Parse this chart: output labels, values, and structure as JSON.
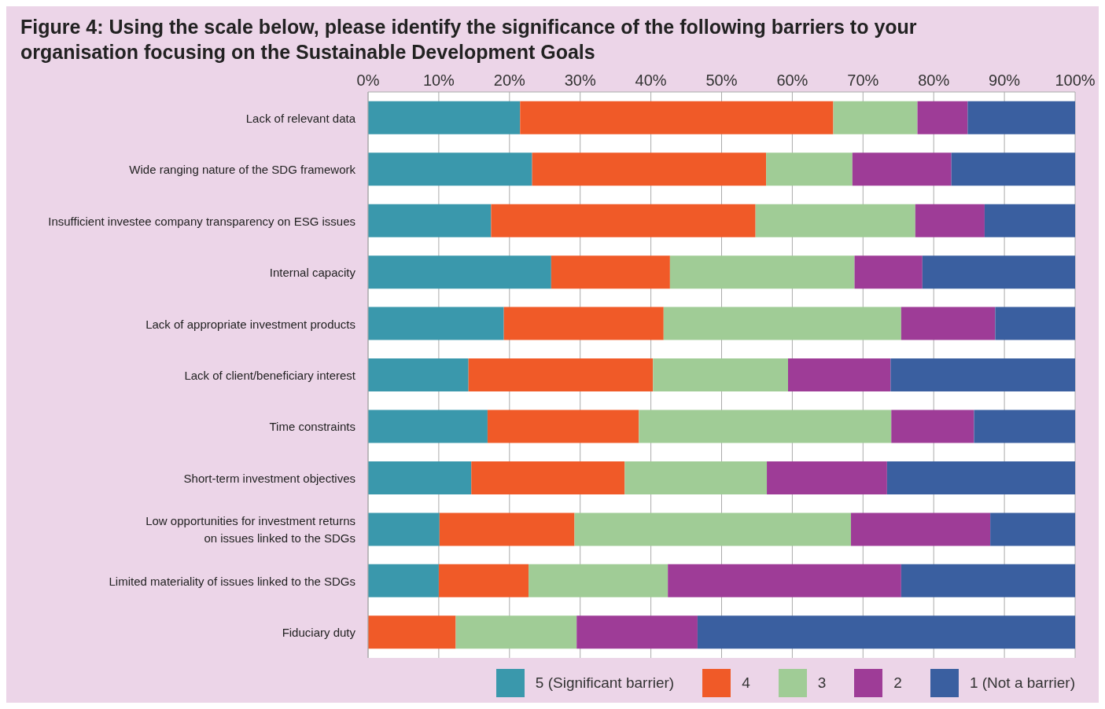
{
  "chart_data": {
    "type": "bar",
    "orientation": "horizontal",
    "stacked": true,
    "title": "Figure 4: Using the scale below, please identify the significance of the following barriers to your organisation focusing on the Sustainable Development Goals",
    "categories": [
      "Lack of relevant data",
      "Wide ranging nature of the SDG framework",
      "Insufficient investee company transparency on ESG issues",
      "Internal capacity",
      "Lack of appropriate investment products",
      "Lack of client/beneficiary interest",
      "Time constraints",
      "Short-term investment objectives",
      "Low opportunities for investment returns\non issues linked to the SDGs",
      "Limited materiality of issues linked to the SDGs",
      "Fiduciary duty"
    ],
    "series": [
      {
        "name": "5 (Significant barrier)",
        "color": "#3a98ac",
        "values": [
          21.5,
          23.2,
          17.4,
          25.9,
          19.2,
          14.2,
          16.9,
          14.6,
          10.1,
          10.0,
          0
        ]
      },
      {
        "name": "4",
        "color": "#f05a28",
        "values": [
          44.3,
          33.1,
          37.4,
          16.8,
          22.6,
          26.1,
          21.4,
          21.7,
          19.1,
          12.7,
          12.4
        ]
      },
      {
        "name": "3",
        "color": "#a0cc96",
        "values": [
          11.9,
          12.2,
          22.6,
          26.1,
          33.6,
          19.1,
          35.7,
          20.1,
          39.1,
          19.7,
          17.1
        ]
      },
      {
        "name": "2",
        "color": "#9e3c97",
        "values": [
          7.1,
          14.0,
          9.8,
          9.6,
          13.3,
          14.5,
          11.7,
          17.0,
          19.7,
          33.0,
          17.1
        ]
      },
      {
        "name": "1 (Not a barrier)",
        "color": "#3a5fa0",
        "values": [
          15.2,
          17.5,
          12.8,
          21.6,
          11.3,
          26.1,
          14.3,
          26.6,
          12.0,
          24.6,
          53.4
        ]
      }
    ],
    "xlim": [
      0,
      100
    ],
    "xticks": [
      {
        "value": 0,
        "label": "0%"
      },
      {
        "value": 10,
        "label": "10%"
      },
      {
        "value": 20,
        "label": "20%"
      },
      {
        "value": 30,
        "label": "30%"
      },
      {
        "value": 40,
        "label": "40%"
      },
      {
        "value": 50,
        "label": "50%"
      },
      {
        "value": 60,
        "label": "60%"
      },
      {
        "value": 70,
        "label": "70%"
      },
      {
        "value": 80,
        "label": "80%"
      },
      {
        "value": 90,
        "label": "90%"
      },
      {
        "value": 100,
        "label": "100%"
      }
    ],
    "grid": "x",
    "legend": "bottom right"
  }
}
